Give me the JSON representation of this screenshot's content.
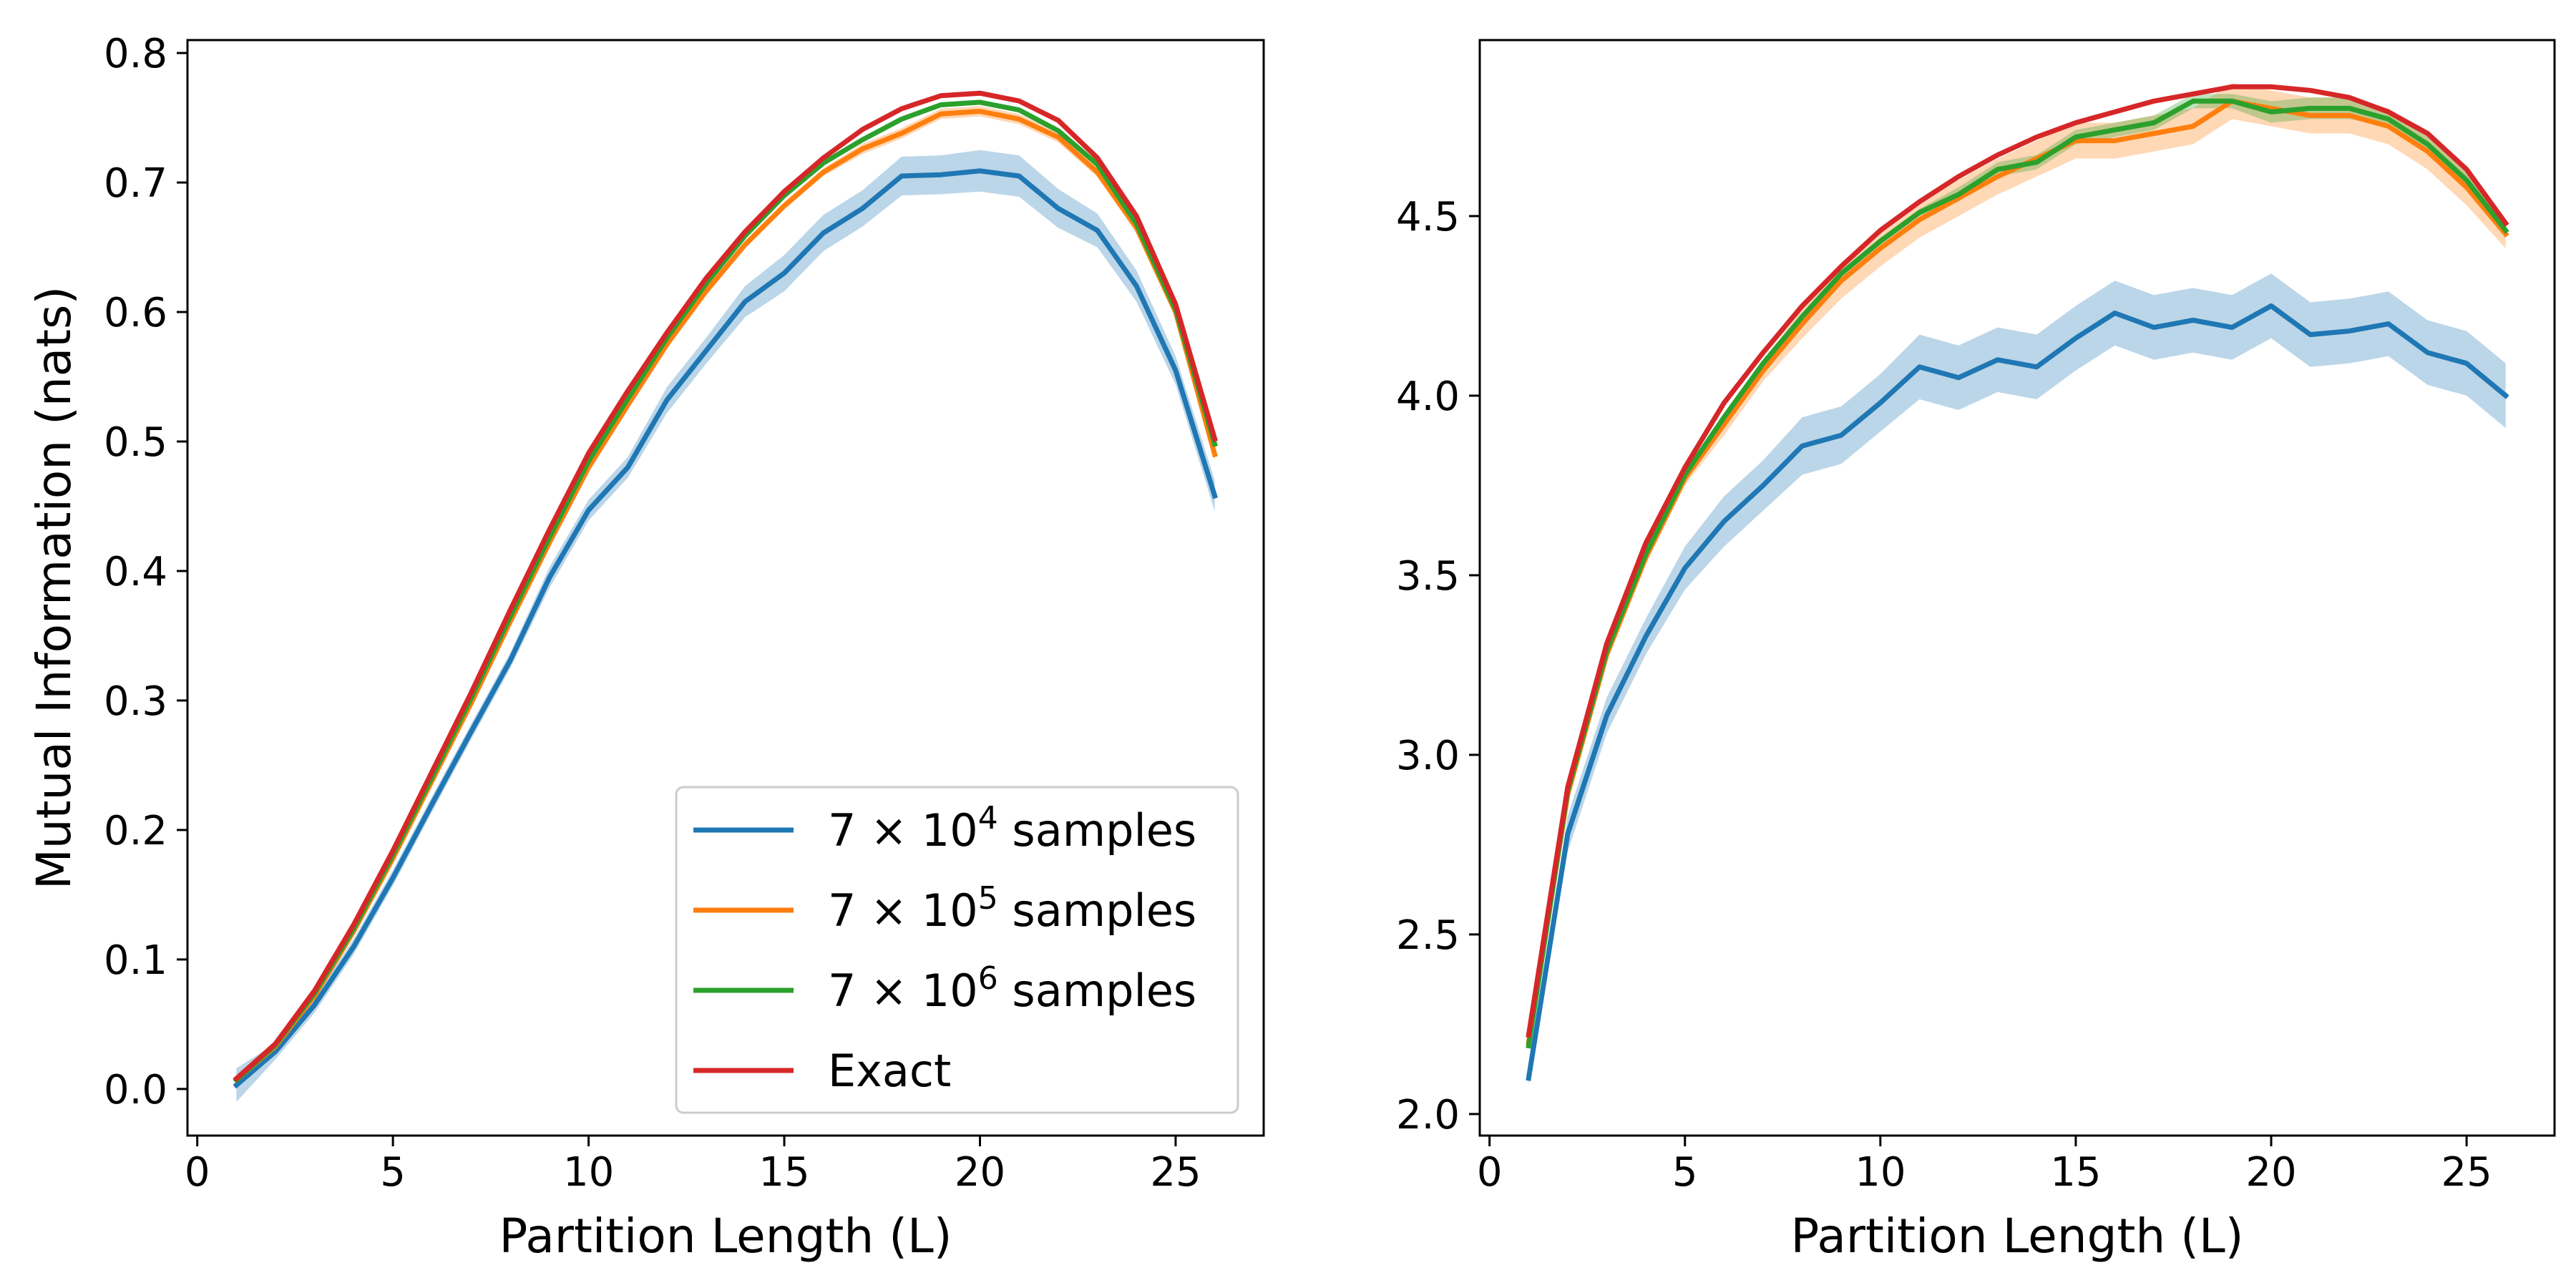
{
  "chart_data": [
    {
      "type": "line",
      "title": "",
      "xlabel": "Partition Length (L)",
      "ylabel": "Mutual Information (nats)",
      "xlim": [
        -0.25,
        27.25
      ],
      "ylim": [
        -0.036,
        0.81
      ],
      "xticks": [
        0,
        5,
        10,
        15,
        20,
        25
      ],
      "xtick_labels": [
        "0",
        "5",
        "10",
        "15",
        "20",
        "25"
      ],
      "yticks": [
        0.0,
        0.1,
        0.2,
        0.3,
        0.4,
        0.5,
        0.6,
        0.7,
        0.8
      ],
      "ytick_labels": [
        "0.0",
        "0.1",
        "0.2",
        "0.3",
        "0.4",
        "0.5",
        "0.6",
        "0.7",
        "0.8"
      ],
      "grid": false,
      "legend_position": "bottom-right",
      "x": [
        1,
        2,
        3,
        4,
        5,
        6,
        7,
        8,
        9,
        10,
        11,
        12,
        13,
        14,
        15,
        16,
        17,
        18,
        19,
        20,
        21,
        22,
        23,
        24,
        25,
        26
      ],
      "series": [
        {
          "name_parts": [
            "7 × 10",
            "4",
            " samples"
          ],
          "color": "#1f77b4",
          "values": [
            0.003,
            0.029,
            0.065,
            0.11,
            0.163,
            0.22,
            0.276,
            0.331,
            0.395,
            0.447,
            0.48,
            0.532,
            0.57,
            0.608,
            0.63,
            0.661,
            0.68,
            0.705,
            0.706,
            0.709,
            0.705,
            0.68,
            0.663,
            0.62,
            0.555,
            0.458
          ],
          "band": [
            0.013,
            0.006,
            0.006,
            0.006,
            0.006,
            0.006,
            0.006,
            0.006,
            0.008,
            0.008,
            0.008,
            0.01,
            0.01,
            0.012,
            0.014,
            0.014,
            0.014,
            0.015,
            0.015,
            0.016,
            0.016,
            0.015,
            0.013,
            0.012,
            0.011,
            0.012
          ]
        },
        {
          "name_parts": [
            "7 × 10",
            "5",
            " samples"
          ],
          "color": "#ff7f0e",
          "values": [
            0.007,
            0.033,
            0.072,
            0.122,
            0.178,
            0.238,
            0.298,
            0.361,
            0.422,
            0.48,
            0.528,
            0.575,
            0.616,
            0.652,
            0.682,
            0.708,
            0.726,
            0.738,
            0.753,
            0.755,
            0.749,
            0.735,
            0.708,
            0.665,
            0.6,
            0.49
          ],
          "band": [
            0.002,
            0.002,
            0.002,
            0.002,
            0.002,
            0.002,
            0.002,
            0.002,
            0.002,
            0.002,
            0.003,
            0.003,
            0.003,
            0.003,
            0.003,
            0.003,
            0.004,
            0.004,
            0.004,
            0.004,
            0.004,
            0.004,
            0.004,
            0.004,
            0.004,
            0.004
          ]
        },
        {
          "name_parts": [
            "7 × 10",
            "6",
            " samples"
          ],
          "color": "#2ca02c",
          "values": [
            0.007,
            0.034,
            0.074,
            0.124,
            0.181,
            0.241,
            0.302,
            0.365,
            0.426,
            0.485,
            0.533,
            0.58,
            0.622,
            0.659,
            0.69,
            0.715,
            0.733,
            0.749,
            0.76,
            0.762,
            0.756,
            0.74,
            0.714,
            0.668,
            0.602,
            0.498
          ],
          "band": [
            0.001,
            0.001,
            0.001,
            0.001,
            0.001,
            0.001,
            0.001,
            0.001,
            0.001,
            0.001,
            0.001,
            0.001,
            0.001,
            0.001,
            0.001,
            0.001,
            0.001,
            0.001,
            0.001,
            0.001,
            0.001,
            0.001,
            0.001,
            0.001,
            0.001,
            0.001
          ]
        },
        {
          "name_parts": [
            "Exact",
            "",
            ""
          ],
          "color": "#d62728",
          "values": [
            0.008,
            0.035,
            0.076,
            0.127,
            0.184,
            0.245,
            0.306,
            0.37,
            0.432,
            0.491,
            0.539,
            0.584,
            0.626,
            0.662,
            0.693,
            0.719,
            0.741,
            0.757,
            0.767,
            0.769,
            0.763,
            0.748,
            0.719,
            0.674,
            0.606,
            0.502
          ],
          "band": null
        }
      ]
    },
    {
      "type": "line",
      "title": "",
      "xlabel": "Partition Length (L)",
      "ylabel": "",
      "xlim": [
        -0.25,
        27.25
      ],
      "ylim": [
        1.94,
        4.99
      ],
      "xticks": [
        0,
        5,
        10,
        15,
        20,
        25
      ],
      "xtick_labels": [
        "0",
        "5",
        "10",
        "15",
        "20",
        "25"
      ],
      "yticks": [
        2.0,
        2.5,
        3.0,
        3.5,
        4.0,
        4.5
      ],
      "ytick_labels": [
        "2.0",
        "2.5",
        "3.0",
        "3.5",
        "4.0",
        "4.5"
      ],
      "grid": false,
      "x": [
        1,
        2,
        3,
        4,
        5,
        6,
        7,
        8,
        9,
        10,
        11,
        12,
        13,
        14,
        15,
        16,
        17,
        18,
        19,
        20,
        21,
        22,
        23,
        24,
        25,
        26
      ],
      "series": [
        {
          "name": "",
          "color": "#1f77b4",
          "values": [
            2.1,
            2.78,
            3.11,
            3.33,
            3.52,
            3.65,
            3.75,
            3.86,
            3.89,
            3.98,
            4.08,
            4.05,
            4.1,
            4.08,
            4.16,
            4.23,
            4.19,
            4.21,
            4.19,
            4.25,
            4.17,
            4.18,
            4.2,
            4.12,
            4.09,
            4.0
          ],
          "band": [
            0.02,
            0.05,
            0.05,
            0.05,
            0.06,
            0.07,
            0.07,
            0.08,
            0.08,
            0.08,
            0.09,
            0.09,
            0.09,
            0.09,
            0.09,
            0.09,
            0.09,
            0.09,
            0.09,
            0.09,
            0.09,
            0.09,
            0.09,
            0.09,
            0.09,
            0.09
          ]
        },
        {
          "name": "",
          "color": "#ff7f0e",
          "values": [
            2.2,
            2.89,
            3.28,
            3.55,
            3.77,
            3.92,
            4.07,
            4.2,
            4.32,
            4.41,
            4.49,
            4.55,
            4.61,
            4.66,
            4.71,
            4.71,
            4.73,
            4.75,
            4.82,
            4.8,
            4.78,
            4.78,
            4.75,
            4.68,
            4.58,
            4.45
          ],
          "band": [
            0.01,
            0.01,
            0.02,
            0.02,
            0.02,
            0.03,
            0.03,
            0.04,
            0.05,
            0.05,
            0.05,
            0.05,
            0.05,
            0.05,
            0.05,
            0.05,
            0.05,
            0.05,
            0.05,
            0.05,
            0.05,
            0.05,
            0.05,
            0.05,
            0.05,
            0.04
          ]
        },
        {
          "name": "",
          "color": "#2ca02c",
          "values": [
            2.19,
            2.9,
            3.29,
            3.56,
            3.78,
            3.94,
            4.09,
            4.22,
            4.34,
            4.43,
            4.51,
            4.56,
            4.63,
            4.65,
            4.72,
            4.74,
            4.76,
            4.82,
            4.82,
            4.79,
            4.8,
            4.8,
            4.77,
            4.7,
            4.6,
            4.46
          ],
          "band": [
            0.01,
            0.01,
            0.01,
            0.01,
            0.01,
            0.01,
            0.01,
            0.01,
            0.01,
            0.01,
            0.01,
            0.02,
            0.02,
            0.02,
            0.02,
            0.02,
            0.02,
            0.02,
            0.02,
            0.03,
            0.03,
            0.03,
            0.02,
            0.02,
            0.02,
            0.02
          ]
        },
        {
          "name": "",
          "color": "#d62728",
          "values": [
            2.22,
            2.91,
            3.31,
            3.59,
            3.8,
            3.98,
            4.12,
            4.25,
            4.36,
            4.46,
            4.54,
            4.61,
            4.67,
            4.72,
            4.76,
            4.79,
            4.82,
            4.84,
            4.86,
            4.86,
            4.85,
            4.83,
            4.79,
            4.73,
            4.63,
            4.48
          ],
          "band": null
        }
      ]
    }
  ]
}
